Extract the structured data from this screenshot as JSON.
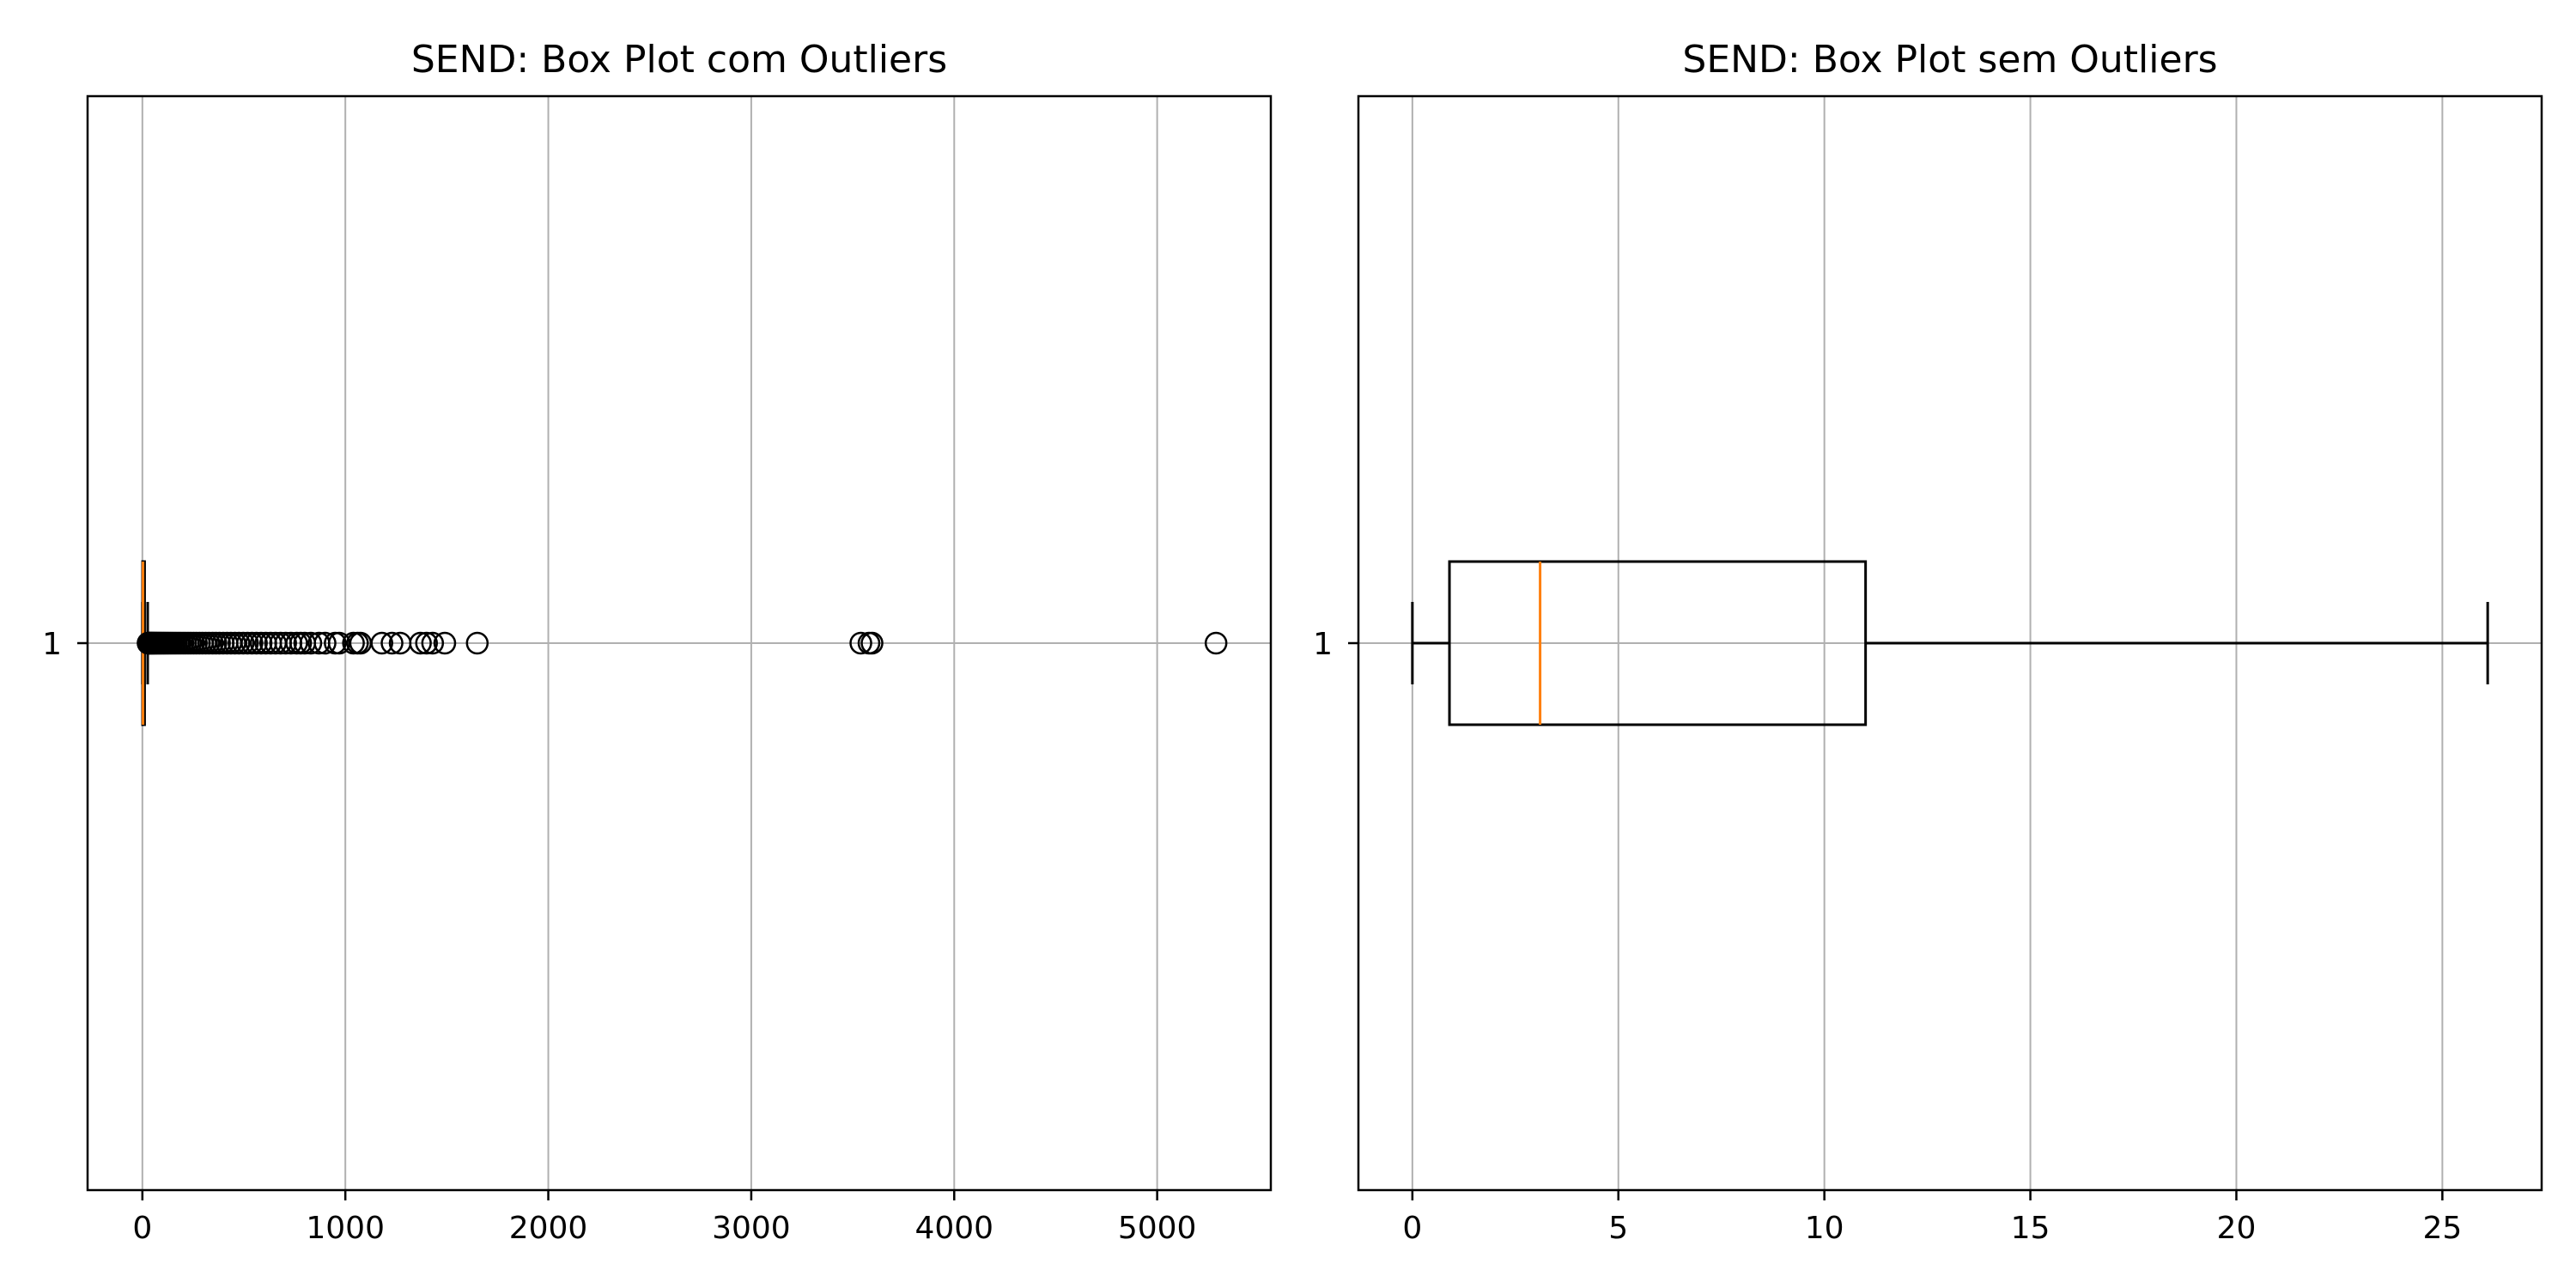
{
  "chart_data": [
    {
      "type": "boxplot",
      "orientation": "horizontal",
      "title": "SEND: Box Plot com Outliers",
      "xlabel": "",
      "ylabel": "",
      "xlim": [
        -270,
        5560
      ],
      "xticks": [
        0,
        1000,
        2000,
        3000,
        4000,
        5000
      ],
      "yticks": [
        "1"
      ],
      "grid": true,
      "box": {
        "whisker_low": 0,
        "q1": 0.9,
        "median": 3.1,
        "q3": 11,
        "whisker_high": 26.1
      },
      "outliers": [
        28,
        30,
        33,
        36,
        39,
        42,
        46,
        50,
        54,
        58,
        63,
        68,
        73,
        79,
        85,
        91,
        98,
        105,
        112,
        120,
        128,
        137,
        146,
        156,
        166,
        177,
        188,
        200,
        212,
        225,
        238,
        252,
        266,
        281,
        296,
        312,
        328,
        345,
        362,
        380,
        398,
        417,
        436,
        456,
        476,
        497,
        518,
        540,
        562,
        585,
        608,
        632,
        656,
        681,
        706,
        732,
        760,
        780,
        800,
        830,
        870,
        900,
        950,
        970,
        1040,
        1060,
        1075,
        1180,
        1230,
        1270,
        1370,
        1400,
        1430,
        1490,
        1650,
        3540,
        3580,
        3595,
        5290
      ]
    },
    {
      "type": "boxplot",
      "orientation": "horizontal",
      "title": "SEND: Box Plot sem Outliers",
      "xlabel": "",
      "ylabel": "",
      "xlim": [
        -1.31,
        27.41
      ],
      "xticks": [
        0,
        5,
        10,
        15,
        20,
        25
      ],
      "yticks": [
        "1"
      ],
      "grid": true,
      "box": {
        "whisker_low": 0,
        "q1": 0.9,
        "median": 3.1,
        "q3": 11,
        "whisker_high": 26.1
      },
      "outliers": []
    }
  ],
  "colors": {
    "box": "#000000",
    "median": "#ff7f0e",
    "grid": "#b0b0b0",
    "background": "#ffffff"
  }
}
